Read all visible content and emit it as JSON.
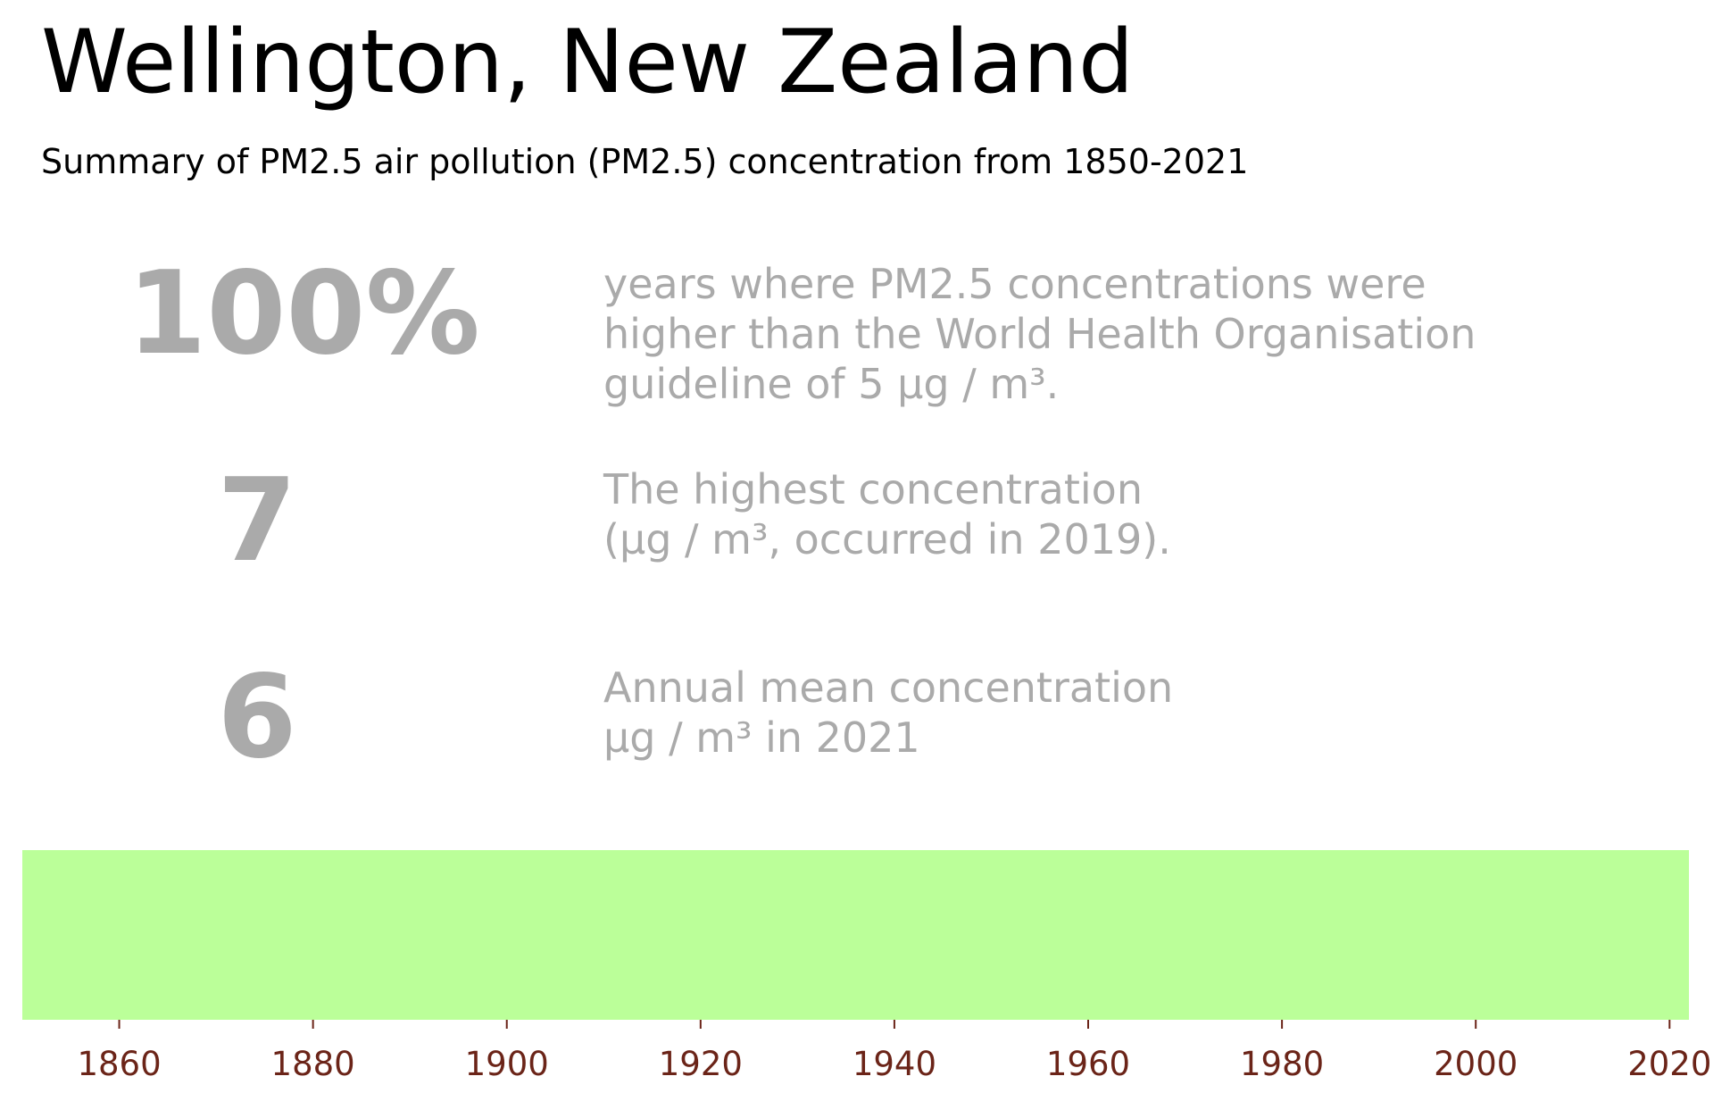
{
  "title": "Wellington, New Zealand",
  "subtitle": "Summary of PM2.5 air pollution (PM2.5) concentration from 1850-2021",
  "stat_color": "#aaaaaa",
  "stats": [
    {
      "value": "100%",
      "description": [
        "years where PM2.5 concentrations were",
        "higher than the World Health Organisation",
        "guideline of 5 μg / m³."
      ]
    },
    {
      "value": "7",
      "description": [
        "The highest concentration",
        "(μg / m³, occurred in 2019)."
      ]
    },
    {
      "value": "6",
      "description": [
        "Annual mean concentration",
        "μg / m³ in 2021"
      ]
    }
  ],
  "chart_data": {
    "type": "heatmap",
    "title": "",
    "xlabel": "",
    "ylabel": "",
    "xlim": [
      1850,
      2022
    ],
    "xticks": [
      1860,
      1880,
      1900,
      1920,
      1940,
      1960,
      1980,
      2000,
      2020
    ],
    "stripe_color": "#bbff99",
    "tick_color": "#6b2418",
    "grid": false
  }
}
